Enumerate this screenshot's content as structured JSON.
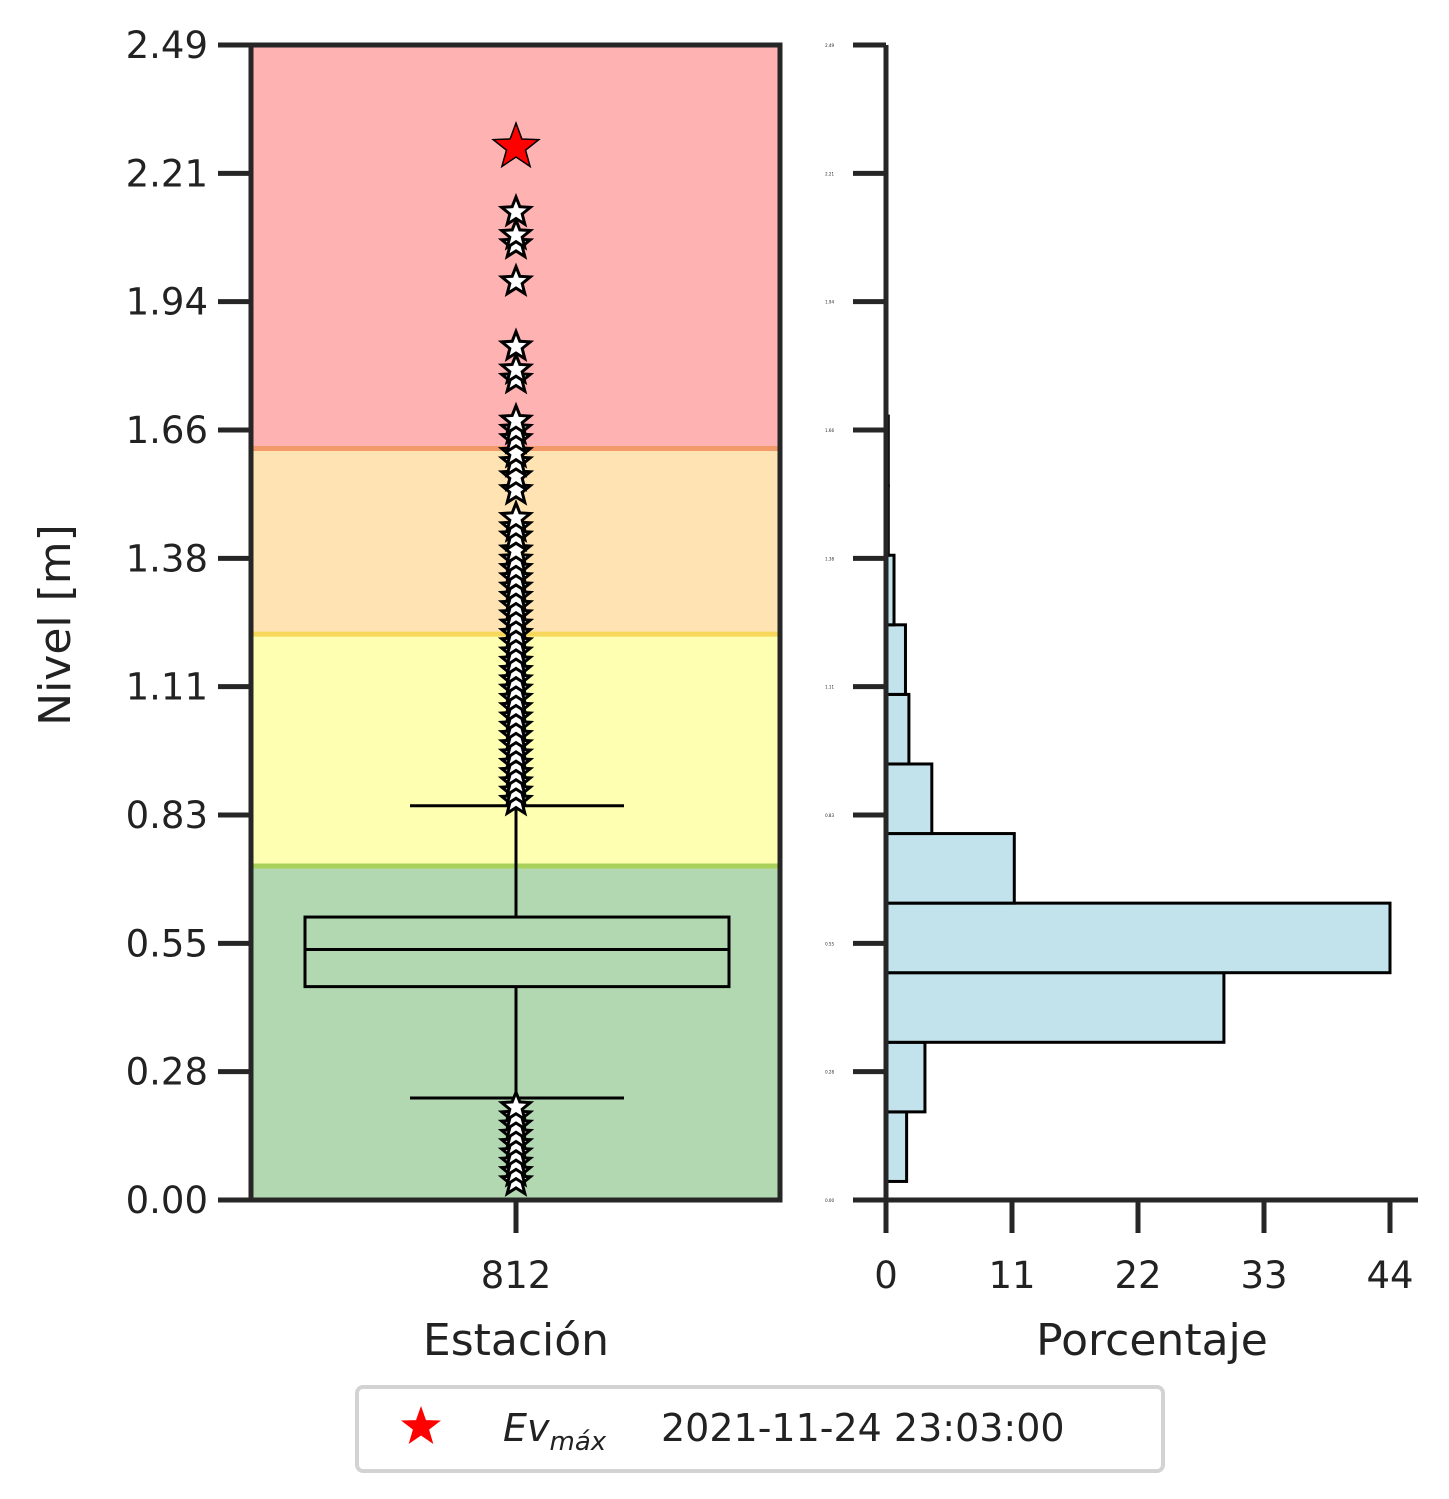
{
  "chart_data": [
    {
      "type": "boxplot",
      "ylabel": "Nivel [m]",
      "xlabel": "Estación",
      "categories": [
        "812"
      ],
      "ylim": [
        0.0,
        2.49
      ],
      "yticks": [
        "0.00",
        "0.28",
        "0.55",
        "0.83",
        "1.11",
        "1.38",
        "1.66",
        "1.94",
        "2.21",
        "2.49"
      ],
      "threshold_bands": [
        {
          "from": 0.0,
          "to": 0.72,
          "color": "#b2d8b2"
        },
        {
          "from": 0.72,
          "to": 1.22,
          "color": "#ffffb2"
        },
        {
          "from": 1.22,
          "to": 1.62,
          "color": "#ffe3b3"
        },
        {
          "from": 1.62,
          "to": 2.49,
          "color": "#ffb2b2"
        }
      ],
      "threshold_line_colors": [
        "#a8d05a",
        "#f7d85a",
        "#f39a6a"
      ],
      "box": {
        "whisker_low": 0.22,
        "q1": 0.46,
        "median": 0.54,
        "q3": 0.61,
        "whisker_high": 0.85
      },
      "outliers_high": [
        0.86,
        0.88,
        0.9,
        0.92,
        0.94,
        0.96,
        0.98,
        1.0,
        1.02,
        1.04,
        1.06,
        1.08,
        1.1,
        1.12,
        1.14,
        1.16,
        1.18,
        1.2,
        1.22,
        1.24,
        1.26,
        1.28,
        1.3,
        1.32,
        1.34,
        1.36,
        1.38,
        1.4,
        1.43,
        1.45,
        1.47,
        1.53,
        1.56,
        1.59,
        1.61,
        1.64,
        1.66,
        1.68,
        1.77,
        1.79,
        1.84,
        1.98,
        2.06,
        2.08,
        2.13
      ],
      "outliers_low": [
        0.04,
        0.06,
        0.08,
        0.1,
        0.12,
        0.14,
        0.16,
        0.18,
        0.2
      ],
      "max_event": {
        "value": 2.27,
        "color": "#ff0000"
      }
    },
    {
      "type": "histogram",
      "orientation": "horizontal",
      "xlabel": "Porcentaje",
      "xlim": [
        0,
        44
      ],
      "xticks": [
        "0",
        "11",
        "22",
        "33",
        "44"
      ],
      "yticks": [
        "0.00",
        "0.28",
        "0.55",
        "0.83",
        "1.11",
        "1.38",
        "1.66",
        "1.94",
        "2.21",
        "2.49"
      ],
      "bin_edges": [
        0.04,
        0.19,
        0.34,
        0.49,
        0.64,
        0.79,
        0.94,
        1.09,
        1.24,
        1.39,
        1.54,
        1.69
      ],
      "values": [
        1.8,
        3.4,
        29.5,
        44.0,
        11.2,
        4.0,
        2.0,
        1.7,
        0.7,
        0.2,
        0.2
      ],
      "bar_color": "#c2e2ec"
    }
  ],
  "legend": {
    "ev_label": "Ev",
    "ev_sub": "máx",
    "datetime": "2021-11-24 23:03:00",
    "marker_color": "#ff0000"
  }
}
